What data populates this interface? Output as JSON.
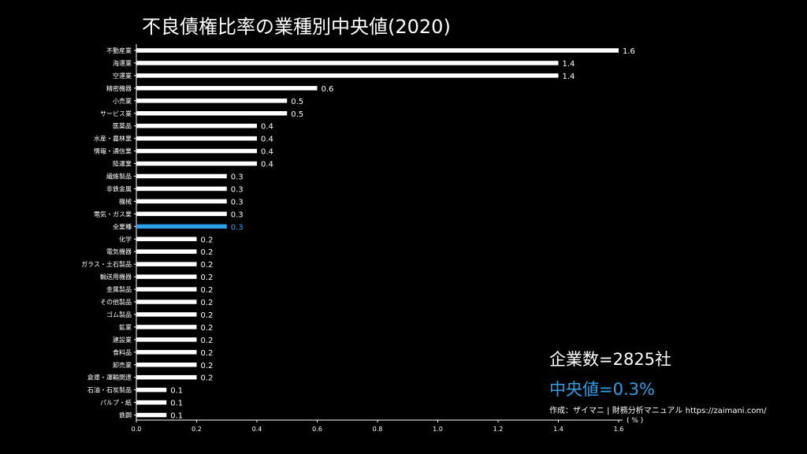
{
  "header": {
    "title": "不良債権比率の業種別中央値(2020)"
  },
  "stats": {
    "company_count": "企業数=2825社",
    "median": "中央値=0.3%"
  },
  "footer": {
    "credit": "作成：ザイマニ | 財務分析マニュアル https://zaimani.com/",
    "unit": "( % )"
  },
  "colors": {
    "background": "#000000",
    "bar": "#ffffff",
    "highlight": "#2ea0e8",
    "text": "#ffffff"
  },
  "chart_data": {
    "type": "bar",
    "orientation": "horizontal",
    "title": "不良債権比率の業種別中央値(2020)",
    "xlabel": "( % )",
    "xlim": [
      0,
      1.65
    ],
    "xticks": [
      0.0,
      0.2,
      0.4,
      0.6,
      0.8,
      1.0,
      1.2,
      1.4,
      1.6
    ],
    "xtick_labels": [
      "0.0",
      "0.2",
      "0.4",
      "0.6",
      "0.8",
      "1.0",
      "1.2",
      "1.4",
      "1.6"
    ],
    "grid": false,
    "highlight_category": "全業種",
    "categories": [
      "不動産業",
      "海運業",
      "空運業",
      "精密機器",
      "小売業",
      "サービス業",
      "医薬品",
      "水産・農林業",
      "情報・通信業",
      "陸運業",
      "繊維製品",
      "非鉄金属",
      "機械",
      "電気・ガス業",
      "全業種",
      "化学",
      "電気機器",
      "ガラス・土石製品",
      "輸送用機器",
      "金属製品",
      "その他製品",
      "ゴム製品",
      "鉱業",
      "建設業",
      "食料品",
      "卸売業",
      "倉庫・運輸関連",
      "石油・石炭製品",
      "パルプ・紙",
      "鉄鋼"
    ],
    "values": [
      1.6,
      1.4,
      1.4,
      0.6,
      0.5,
      0.5,
      0.4,
      0.4,
      0.4,
      0.4,
      0.3,
      0.3,
      0.3,
      0.3,
      0.3,
      0.2,
      0.2,
      0.2,
      0.2,
      0.2,
      0.2,
      0.2,
      0.2,
      0.2,
      0.2,
      0.2,
      0.2,
      0.1,
      0.1,
      0.1
    ],
    "value_labels": [
      "1.6",
      "1.4",
      "1.4",
      "0.6",
      "0.5",
      "0.5",
      "0.4",
      "0.4",
      "0.4",
      "0.4",
      "0.3",
      "0.3",
      "0.3",
      "0.3",
      "0.3",
      "0.2",
      "0.2",
      "0.2",
      "0.2",
      "0.2",
      "0.2",
      "0.2",
      "0.2",
      "0.2",
      "0.2",
      "0.2",
      "0.2",
      "0.1",
      "0.1",
      "0.1"
    ]
  }
}
